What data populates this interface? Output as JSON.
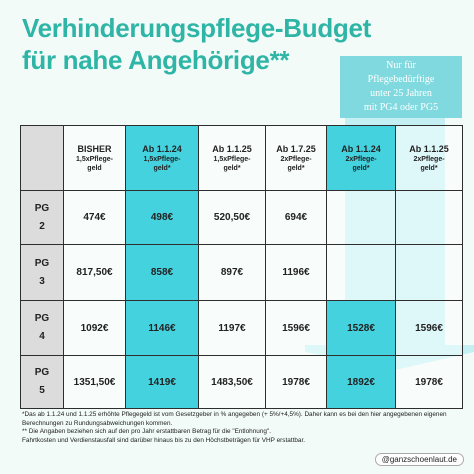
{
  "header": {
    "title_lines": [
      "Verhinderungspflege-Budget",
      "für nahe Angehörige**"
    ]
  },
  "callout": {
    "lines": [
      "Nur für",
      "Pflegebedürftige",
      "unter 25 Jahren",
      "mit PG4 oder PG5"
    ]
  },
  "table": {
    "columns": [
      {
        "title": "BISHER",
        "sub": "1,5xPflege-geld"
      },
      {
        "title": "Ab 1.1.24",
        "sub": "1,5xPflege-geld*"
      },
      {
        "title": "Ab 1.1.25",
        "sub": "1,5xPflege-geld*"
      },
      {
        "title": "Ab 1.7.25",
        "sub": "2xPflege-geld*"
      },
      {
        "title": "Ab 1.1.24",
        "sub": "2xPflege-geld*"
      },
      {
        "title": "Ab 1.1.25",
        "sub": "2xPflege-geld*"
      }
    ],
    "rows": [
      {
        "label": "PG 2",
        "cells": [
          "474€",
          "498€",
          "520,50€",
          "694€",
          null,
          null
        ]
      },
      {
        "label": "PG 3",
        "cells": [
          "817,50€",
          "858€",
          "897€",
          "1196€",
          null,
          null
        ]
      },
      {
        "label": "PG 4",
        "cells": [
          "1092€",
          "1146€",
          "1197€",
          "1596€",
          "1528€",
          "1596€"
        ]
      },
      {
        "label": "PG 5",
        "cells": [
          "1351,50€",
          "1419€",
          "1483,50€",
          "1978€",
          "1892€",
          "1978€"
        ]
      }
    ]
  },
  "footnotes": [
    "*Das ab 1.1.24 und 1.1.25 erhöhte Pflegegeld ist vom Gesetzgeber in % angegeben (+ 5%/+4,5%). Daher kann es bei den hier angegebenen eigenen Berechnungen zu Rundungsabweichungen kommen.",
    "** Die Angaben beziehen sich auf den pro Jahr erstattbaren Betrag für die \"Entlohnung\".",
    "Fahrtkosten und Verdienstausfall sind darüber hinaus bis zu den Höchstbeträgen für VHP erstattbar."
  ],
  "handle": "@ganzschoenlaut.de"
}
